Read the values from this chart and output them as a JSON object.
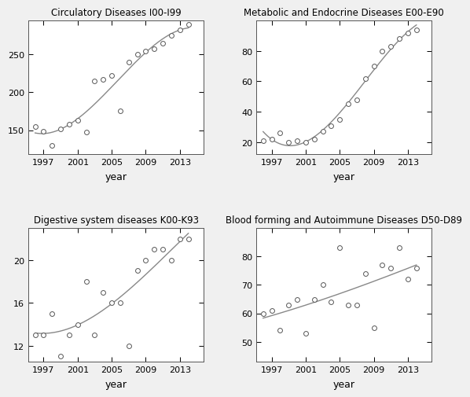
{
  "plots": [
    {
      "title": "Circulatory Diseases I00-I99",
      "years": [
        1996,
        1997,
        1998,
        1999,
        2000,
        2001,
        2002,
        2003,
        2004,
        2005,
        2006,
        2007,
        2008,
        2009,
        2010,
        2011,
        2012,
        2013,
        2014
      ],
      "values": [
        155,
        148,
        130,
        152,
        158,
        163,
        147,
        215,
        217,
        222,
        175,
        240,
        250,
        255,
        258,
        265,
        275,
        283,
        290
      ],
      "ylim": [
        118,
        295
      ],
      "yticks": [
        150,
        200,
        250
      ],
      "row": 0,
      "col": 0
    },
    {
      "title": "Metabolic and Endocrine Diseases E00-E90",
      "years": [
        1996,
        1997,
        1998,
        1999,
        2000,
        2001,
        2002,
        2003,
        2004,
        2005,
        2006,
        2007,
        2008,
        2009,
        2010,
        2011,
        2012,
        2013,
        2014
      ],
      "values": [
        21,
        22,
        26,
        20,
        21,
        20,
        22,
        27,
        31,
        35,
        45,
        48,
        62,
        70,
        80,
        83,
        88,
        92,
        94
      ],
      "ylim": [
        12,
        100
      ],
      "yticks": [
        20,
        40,
        60,
        80
      ],
      "row": 0,
      "col": 1
    },
    {
      "title": "Digestive system diseases K00-K93",
      "years": [
        1996,
        1997,
        1998,
        1999,
        2000,
        2001,
        2002,
        2003,
        2004,
        2005,
        2006,
        2007,
        2008,
        2009,
        2010,
        2011,
        2012,
        2013,
        2014
      ],
      "values": [
        13,
        13,
        15,
        11,
        13,
        14,
        18,
        13,
        17,
        16,
        16,
        12,
        19,
        20,
        21,
        21,
        20,
        22,
        22
      ],
      "ylim": [
        10.5,
        23
      ],
      "yticks": [
        12,
        16,
        20
      ],
      "row": 1,
      "col": 0
    },
    {
      "title": "Blood forming and Autoimmune Diseases D50-D89",
      "years": [
        1996,
        1997,
        1998,
        1999,
        2000,
        2001,
        2002,
        2003,
        2004,
        2005,
        2006,
        2007,
        2008,
        2009,
        2010,
        2011,
        2012,
        2013,
        2014
      ],
      "values": [
        60,
        61,
        54,
        63,
        65,
        53,
        65,
        70,
        64,
        83,
        63,
        63,
        74,
        55,
        77,
        76,
        83,
        72,
        76
      ],
      "ylim": [
        43,
        90
      ],
      "yticks": [
        50,
        60,
        70,
        80
      ],
      "row": 1,
      "col": 1
    }
  ],
  "xticks": [
    1997,
    2001,
    2005,
    2009,
    2013
  ],
  "xlabel": "year",
  "line_color": "#888888",
  "marker_facecolor": "white",
  "marker_edge_color": "#555555",
  "bg_color": "#f0f0f0",
  "plot_bg_color": "#ffffff",
  "title_fontsize": 8.5,
  "label_fontsize": 9,
  "tick_fontsize": 8
}
